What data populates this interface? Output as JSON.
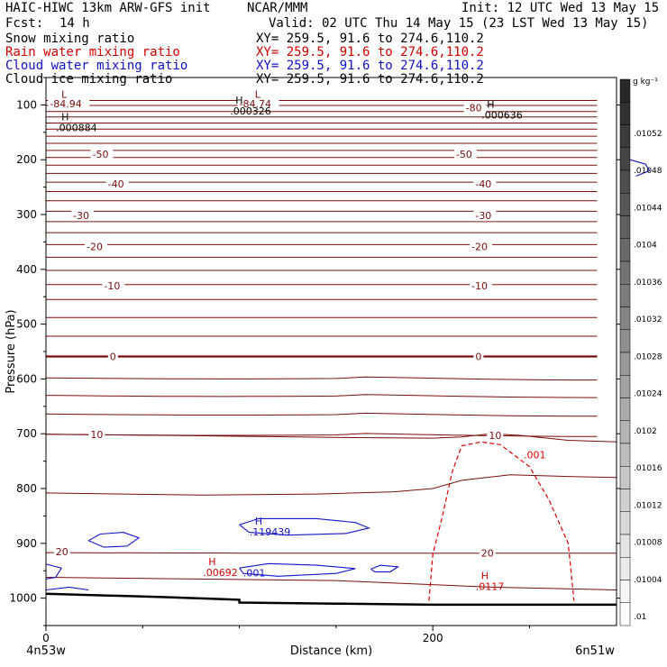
{
  "header": {
    "title": "HAIC-HIWC 13km ARW-GFS init",
    "org": "NCAR/MMM",
    "init": "Init: 12 UTC Wed 13 May 15",
    "fcst_label": "Fcst:",
    "fcst_value": "14 h",
    "valid": "Valid: 02 UTC Thu 14 May 15 (23 LST Wed 13 May 15)",
    "fields": [
      {
        "name": "Snow mixing ratio",
        "xy": "XY= 259.5, 91.6 to 274.6,110.2",
        "color": "#000000"
      },
      {
        "name": "Rain water mixing ratio",
        "xy": "XY= 259.5, 91.6 to 274.6,110.2",
        "color": "#d00000"
      },
      {
        "name": "Cloud water mixing ratio",
        "xy": "XY= 259.5, 91.6 to 274.6,110.2",
        "color": "#1010c8"
      },
      {
        "name": "Cloud ice mixing ratio",
        "xy": "XY= 259.5, 91.6 to 274.6,110.2",
        "color": "#000000"
      }
    ]
  },
  "chart_data": {
    "type": "contour",
    "xlabel": "Distance (km)",
    "ylabel": "Pressure (hPa)",
    "xlim": [
      0,
      295
    ],
    "ylim": [
      1050,
      50
    ],
    "y_scale": "linear-inverted",
    "x_ticks": [
      0,
      200
    ],
    "y_ticks": [
      100,
      200,
      300,
      400,
      500,
      600,
      700,
      800,
      900,
      1000
    ],
    "x_end_labels": [
      "4n53w",
      "6n51w"
    ],
    "colorbar": {
      "unit": "g kg⁻¹",
      "labels": [
        ".01052",
        ".01048",
        ".01044",
        ".0104",
        ".01036",
        ".01032",
        ".01028",
        ".01024",
        ".0102",
        ".01016",
        ".01012",
        ".01008",
        ".01004",
        ".01"
      ]
    },
    "temperature_contours": {
      "color": "#7a0c0c",
      "labels": [
        {
          "text": "-84.94",
          "x": 2,
          "p": 98
        },
        {
          "text": "-84.74",
          "x": 100,
          "p": 98
        },
        {
          "text": "-80",
          "x": 217,
          "p": 105
        },
        {
          "text": "-50",
          "x": 24,
          "p": 190
        },
        {
          "text": "-50",
          "x": 212,
          "p": 190
        },
        {
          "text": "-40",
          "x": 32,
          "p": 244
        },
        {
          "text": "-40",
          "x": 222,
          "p": 244
        },
        {
          "text": "-30",
          "x": 14,
          "p": 302
        },
        {
          "text": "-30",
          "x": 222,
          "p": 302
        },
        {
          "text": "-20",
          "x": 21,
          "p": 358
        },
        {
          "text": "-20",
          "x": 220,
          "p": 358
        },
        {
          "text": "-10",
          "x": 30,
          "p": 430
        },
        {
          "text": "-10",
          "x": 220,
          "p": 430
        },
        {
          "text": "0",
          "x": 33,
          "p": 559
        },
        {
          "text": "0",
          "x": 222,
          "p": 559
        },
        {
          "text": "10",
          "x": 23,
          "p": 701
        },
        {
          "text": "10",
          "x": 229,
          "p": 703
        },
        {
          "text": "20",
          "x": 5,
          "p": 915
        },
        {
          "text": "20",
          "x": 225,
          "p": 918
        }
      ]
    },
    "extrema": [
      {
        "type": "L",
        "x": 8,
        "p": 87,
        "value": ""
      },
      {
        "type": "L",
        "x": 108,
        "p": 87,
        "value": ""
      },
      {
        "type": "H",
        "x": 8,
        "p": 128,
        "value": ".000884"
      },
      {
        "type": "H",
        "x": 98,
        "p": 98,
        "value": ".000326"
      },
      {
        "type": "H",
        "x": 228,
        "p": 105,
        "value": ".000636"
      },
      {
        "type": "H",
        "x": 108,
        "p": 866,
        "value": ".119439"
      },
      {
        "type": "H",
        "x": 84,
        "p": 940,
        "value": ".00692"
      },
      {
        "type": "H",
        "x": 225,
        "p": 965,
        "value": ".0117"
      }
    ],
    "rain_contour": {
      "level": ".001",
      "label_x": 247,
      "label_p": 745
    },
    "cloud_water_contour_label": {
      "text": ".001",
      "x": 102,
      "p": 960
    }
  }
}
